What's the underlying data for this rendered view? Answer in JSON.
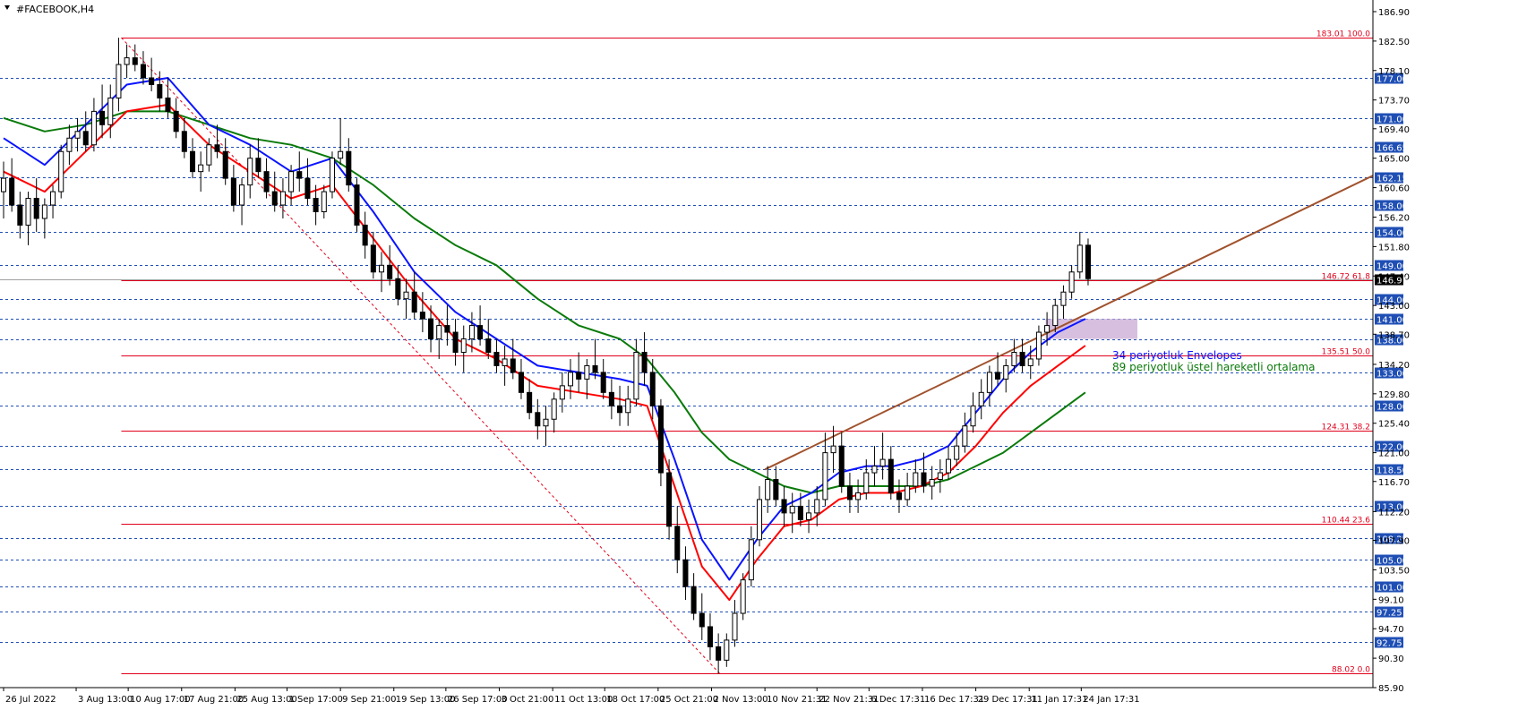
{
  "window": {
    "title": "#FACEBOOK,H4"
  },
  "colors": {
    "background": "#ffffff",
    "grid": "#1f4fb5",
    "fib": "#e0001b",
    "envelope_upper": "#0a14ff",
    "envelope_lower": "#ff0000",
    "ema": "#0a7a0a",
    "trendline": "#a0522d",
    "zone": "#c9a9d4",
    "badge": "#1f4fb5",
    "current_price_badge": "#000000",
    "candle": "#000000"
  },
  "chart_data": {
    "type": "candlestick",
    "symbol": "#FACEBOOK",
    "timeframe": "H4",
    "ylim": [
      85.9,
      187.3
    ],
    "xlim": [
      0,
      100
    ],
    "y_ticks": [
      "186.90",
      "182.50",
      "178.10",
      "173.70",
      "169.40",
      "165.00",
      "160.60",
      "156.20",
      "151.80",
      "147.40",
      "143.00",
      "138.70",
      "134.20",
      "129.80",
      "125.40",
      "121.00",
      "116.70",
      "112.20",
      "107.90",
      "103.50",
      "99.10",
      "94.70",
      "90.30",
      "85.90"
    ],
    "x_ticks": [
      {
        "x": 0,
        "label": "26 Jul 2022"
      },
      {
        "x": 5.3,
        "label": "3 Aug 13:00"
      },
      {
        "x": 9.1,
        "label": "10 Aug 17:00"
      },
      {
        "x": 13.0,
        "label": "17 Aug 21:00"
      },
      {
        "x": 16.9,
        "label": "25 Aug 13:00"
      },
      {
        "x": 20.7,
        "label": "1 Sep 17:00"
      },
      {
        "x": 24.6,
        "label": "9 Sep 21:00"
      },
      {
        "x": 28.5,
        "label": "19 Sep 13:00"
      },
      {
        "x": 32.3,
        "label": "26 Sep 17:00"
      },
      {
        "x": 36.2,
        "label": "3 Oct 21:00"
      },
      {
        "x": 40.1,
        "label": "11 Oct 13:00"
      },
      {
        "x": 43.9,
        "label": "18 Oct 17:00"
      },
      {
        "x": 47.8,
        "label": "25 Oct 21:00"
      },
      {
        "x": 51.7,
        "label": "2 Nov 13:00"
      },
      {
        "x": 55.6,
        "label": "10 Nov 21:31"
      },
      {
        "x": 59.4,
        "label": "22 Nov 21:31"
      },
      {
        "x": 63.2,
        "label": "6 Dec 17:31"
      },
      {
        "x": 67.1,
        "label": "16 Dec 17:31"
      },
      {
        "x": 71.0,
        "label": "29 Dec 17:31"
      },
      {
        "x": 74.9,
        "label": "11 Jan 17:31"
      },
      {
        "x": 78.7,
        "label": "24 Jan 17:31"
      }
    ],
    "horizontal_levels": [
      177.0,
      171.0,
      166.65,
      162.15,
      158.0,
      154.0,
      149.0,
      144.0,
      141.0,
      138.0,
      133.0,
      128.0,
      122.0,
      118.5,
      113.0,
      108.25,
      105.0,
      101.0,
      97.25,
      92.75
    ],
    "fibonacci": [
      {
        "price": 183.01,
        "label": "183.01 100.0"
      },
      {
        "price": 146.72,
        "label": "146.72 61.8"
      },
      {
        "price": 135.51,
        "label": "135.51 50.0"
      },
      {
        "price": 124.31,
        "label": "124.31 38.2"
      },
      {
        "price": 110.44,
        "label": "110.44 23.6"
      },
      {
        "price": 88.02,
        "label": "88.02 0.0"
      }
    ],
    "current_price": "146.91",
    "trendline": [
      [
        55.6,
        118.5
      ],
      [
        100,
        162.4
      ]
    ],
    "fib_diagonal": [
      [
        8.6,
        183.0
      ],
      [
        52.3,
        88.0
      ]
    ],
    "zone": {
      "x": [
        76.1,
        82.8
      ],
      "y": [
        138.0,
        141.0
      ]
    },
    "candles": [
      [
        0,
        160,
        164.5,
        156,
        162
      ],
      [
        0.6,
        162,
        165,
        157,
        158
      ],
      [
        1.2,
        158,
        160,
        153,
        155
      ],
      [
        1.8,
        155,
        160,
        152,
        159
      ],
      [
        2.4,
        159,
        162,
        154,
        156
      ],
      [
        3,
        156,
        159,
        153,
        158
      ],
      [
        3.6,
        158,
        161,
        156,
        160
      ],
      [
        4.2,
        160,
        167,
        159,
        166
      ],
      [
        4.8,
        166,
        170,
        164,
        168
      ],
      [
        5.4,
        168,
        171,
        166,
        169
      ],
      [
        6,
        169,
        172,
        166,
        167
      ],
      [
        6.6,
        167,
        174,
        166,
        172
      ],
      [
        7.2,
        172,
        176,
        168,
        170
      ],
      [
        7.8,
        170,
        176,
        168,
        174
      ],
      [
        8.4,
        174,
        183,
        172,
        179
      ],
      [
        9,
        179,
        182,
        177,
        180
      ],
      [
        9.6,
        180,
        182,
        178,
        179
      ],
      [
        10.2,
        179,
        181,
        176,
        177
      ],
      [
        10.8,
        177,
        180,
        175,
        176
      ],
      [
        11.4,
        176,
        178,
        172,
        174
      ],
      [
        12,
        174,
        177,
        171,
        172
      ],
      [
        12.6,
        172,
        174,
        168,
        169
      ],
      [
        13.2,
        169,
        171,
        165,
        166
      ],
      [
        13.8,
        166,
        168,
        162,
        163
      ],
      [
        14.4,
        163,
        166,
        160,
        164
      ],
      [
        15,
        164,
        168,
        163,
        167
      ],
      [
        15.6,
        167,
        170,
        165,
        166
      ],
      [
        16.2,
        166,
        168,
        161,
        162
      ],
      [
        16.8,
        162,
        164,
        157,
        158
      ],
      [
        17.4,
        158,
        162,
        155,
        161
      ],
      [
        18,
        161,
        167,
        159,
        165
      ],
      [
        18.6,
        165,
        168,
        162,
        163
      ],
      [
        19.2,
        163,
        165,
        159,
        160
      ],
      [
        19.8,
        160,
        163,
        157,
        158
      ],
      [
        20.4,
        158,
        162,
        156,
        160
      ],
      [
        21,
        160,
        164,
        158,
        163
      ],
      [
        21.6,
        163,
        166,
        160,
        162
      ],
      [
        22.2,
        162,
        165,
        158,
        159
      ],
      [
        22.8,
        159,
        161,
        155,
        157
      ],
      [
        23.4,
        157,
        161,
        156,
        160
      ],
      [
        24,
        160,
        166,
        159,
        165
      ],
      [
        24.6,
        165,
        171,
        164,
        166
      ],
      [
        25.2,
        166,
        168,
        160,
        161
      ],
      [
        25.8,
        161,
        162,
        154,
        155
      ],
      [
        26.4,
        155,
        157,
        150,
        152
      ],
      [
        27,
        152,
        154,
        147,
        148
      ],
      [
        27.6,
        148,
        151,
        145,
        149
      ],
      [
        28.2,
        149,
        152,
        146,
        147
      ],
      [
        28.8,
        147,
        149,
        143,
        144
      ],
      [
        29.4,
        144,
        147,
        141,
        145
      ],
      [
        30,
        145,
        148,
        141,
        142
      ],
      [
        30.6,
        142,
        145,
        139,
        141
      ],
      [
        31.2,
        141,
        143,
        136,
        138
      ],
      [
        31.8,
        138,
        141,
        135,
        140
      ],
      [
        32.4,
        140,
        143,
        137,
        139
      ],
      [
        33,
        139,
        141,
        134,
        136
      ],
      [
        33.6,
        136,
        140,
        133,
        138
      ],
      [
        34.2,
        138,
        142,
        136,
        140
      ],
      [
        34.8,
        140,
        143,
        137,
        138
      ],
      [
        35.4,
        138,
        141,
        135,
        136
      ],
      [
        36,
        136,
        138,
        133,
        134
      ],
      [
        36.6,
        134,
        137,
        131,
        135
      ],
      [
        37.2,
        135,
        138,
        132,
        133
      ],
      [
        37.8,
        133,
        135,
        129,
        130
      ],
      [
        38.4,
        130,
        132,
        126,
        127
      ],
      [
        39,
        127,
        129,
        123,
        125
      ],
      [
        39.6,
        125,
        128,
        122,
        126
      ],
      [
        40.2,
        126,
        130,
        124,
        129
      ],
      [
        40.8,
        129,
        133,
        127,
        131
      ],
      [
        41.4,
        131,
        135,
        129,
        133
      ],
      [
        42,
        133,
        136,
        130,
        132
      ],
      [
        42.6,
        132,
        135,
        129,
        134
      ],
      [
        43.2,
        134,
        138,
        132,
        133
      ],
      [
        43.8,
        133,
        135,
        129,
        130
      ],
      [
        44.4,
        130,
        132,
        126,
        128
      ],
      [
        45,
        128,
        131,
        125,
        127
      ],
      [
        45.6,
        127,
        131,
        125,
        129
      ],
      [
        46.2,
        129,
        138,
        128,
        136
      ],
      [
        46.8,
        136,
        139,
        131,
        133
      ],
      [
        47.4,
        133,
        135,
        126,
        128
      ],
      [
        48,
        128,
        129,
        116,
        118
      ],
      [
        48.6,
        118,
        120,
        108,
        110
      ],
      [
        49.2,
        110,
        113,
        103,
        105
      ],
      [
        49.8,
        105,
        107,
        99,
        101
      ],
      [
        50.4,
        101,
        103,
        96,
        97
      ],
      [
        51,
        97,
        100,
        93,
        95
      ],
      [
        51.6,
        95,
        97,
        90,
        92
      ],
      [
        52.2,
        92,
        94,
        88,
        90
      ],
      [
        52.8,
        90,
        94,
        89,
        93
      ],
      [
        53.4,
        93,
        99,
        92,
        97
      ],
      [
        54,
        97,
        103,
        96,
        102
      ],
      [
        54.6,
        102,
        110,
        101,
        108
      ],
      [
        55.2,
        108,
        116,
        107,
        114
      ],
      [
        55.8,
        114,
        119,
        112,
        117
      ],
      [
        56.4,
        117,
        119,
        113,
        114
      ],
      [
        57,
        114,
        116,
        110,
        112
      ],
      [
        57.6,
        112,
        115,
        109,
        113
      ],
      [
        58.2,
        113,
        115,
        110,
        111
      ],
      [
        58.8,
        111,
        114,
        109,
        112
      ],
      [
        59.4,
        112,
        116,
        110,
        114
      ],
      [
        60,
        114,
        124,
        113,
        121
      ],
      [
        60.6,
        121,
        125,
        118,
        122
      ],
      [
        61.2,
        122,
        124,
        115,
        116
      ],
      [
        61.8,
        116,
        118,
        112,
        114
      ],
      [
        62.4,
        114,
        117,
        112,
        115
      ],
      [
        63,
        115,
        120,
        114,
        118
      ],
      [
        63.6,
        118,
        122,
        116,
        119
      ],
      [
        64.2,
        119,
        124,
        117,
        120
      ],
      [
        64.8,
        120,
        122,
        114,
        115
      ],
      [
        65.4,
        115,
        117,
        112,
        114
      ],
      [
        66,
        114,
        118,
        113,
        116
      ],
      [
        66.6,
        116,
        120,
        115,
        118
      ],
      [
        67.2,
        118,
        121,
        115,
        116
      ],
      [
        67.8,
        116,
        119,
        114,
        117
      ],
      [
        68.4,
        117,
        120,
        115,
        118
      ],
      [
        69,
        118,
        122,
        117,
        120
      ],
      [
        69.6,
        120,
        124,
        119,
        122
      ],
      [
        70.2,
        122,
        127,
        121,
        125
      ],
      [
        70.8,
        125,
        130,
        124,
        128
      ],
      [
        71.4,
        128,
        132,
        126,
        130
      ],
      [
        72,
        130,
        134,
        128,
        133
      ],
      [
        72.6,
        133,
        136,
        131,
        132
      ],
      [
        73.2,
        132,
        135,
        130,
        134
      ],
      [
        73.8,
        134,
        138,
        133,
        136
      ],
      [
        74.4,
        136,
        138,
        133,
        134
      ],
      [
        75,
        134,
        137,
        132,
        135
      ],
      [
        75.6,
        135,
        140,
        134,
        139
      ],
      [
        76.2,
        139,
        142,
        137,
        140
      ],
      [
        76.8,
        140,
        144,
        139,
        143
      ],
      [
        77.4,
        143,
        146,
        141,
        145
      ],
      [
        78,
        145,
        149,
        144,
        148
      ],
      [
        78.6,
        148,
        154,
        147,
        152
      ],
      [
        79.2,
        152,
        153,
        146,
        147
      ]
    ],
    "envelope_upper": [
      [
        0,
        168
      ],
      [
        3,
        164
      ],
      [
        6,
        170
      ],
      [
        9,
        176
      ],
      [
        12,
        177
      ],
      [
        15,
        170
      ],
      [
        18,
        167
      ],
      [
        21,
        163
      ],
      [
        24,
        165
      ],
      [
        27,
        157
      ],
      [
        30,
        148
      ],
      [
        33,
        142
      ],
      [
        36,
        138
      ],
      [
        39,
        134
      ],
      [
        42,
        133
      ],
      [
        45,
        132
      ],
      [
        47,
        131
      ],
      [
        49,
        120
      ],
      [
        51,
        108
      ],
      [
        53,
        102
      ],
      [
        55,
        108
      ],
      [
        57,
        113
      ],
      [
        59,
        115
      ],
      [
        61,
        118
      ],
      [
        63,
        119
      ],
      [
        65,
        119
      ],
      [
        67,
        120
      ],
      [
        69,
        122
      ],
      [
        71,
        127
      ],
      [
        73,
        132
      ],
      [
        75,
        136
      ],
      [
        77,
        139
      ],
      [
        79,
        141
      ]
    ],
    "envelope_lower": [
      [
        0,
        163
      ],
      [
        3,
        160
      ],
      [
        6,
        166
      ],
      [
        9,
        172
      ],
      [
        12,
        173
      ],
      [
        15,
        167
      ],
      [
        18,
        163
      ],
      [
        21,
        159
      ],
      [
        24,
        161
      ],
      [
        27,
        153
      ],
      [
        30,
        145
      ],
      [
        33,
        138
      ],
      [
        36,
        135
      ],
      [
        39,
        131
      ],
      [
        42,
        130
      ],
      [
        45,
        129
      ],
      [
        47,
        128
      ],
      [
        49,
        116
      ],
      [
        51,
        104
      ],
      [
        53,
        99
      ],
      [
        55,
        105
      ],
      [
        57,
        110
      ],
      [
        59,
        111
      ],
      [
        61,
        114
      ],
      [
        63,
        115
      ],
      [
        65,
        115
      ],
      [
        67,
        116
      ],
      [
        69,
        118
      ],
      [
        71,
        122
      ],
      [
        73,
        127
      ],
      [
        75,
        131
      ],
      [
        77,
        134
      ],
      [
        79,
        137
      ]
    ],
    "ema89": [
      [
        0,
        171
      ],
      [
        3,
        169
      ],
      [
        6,
        170
      ],
      [
        9,
        172
      ],
      [
        12,
        172
      ],
      [
        15,
        170
      ],
      [
        18,
        168
      ],
      [
        21,
        167
      ],
      [
        24,
        165
      ],
      [
        27,
        161
      ],
      [
        30,
        156
      ],
      [
        33,
        152
      ],
      [
        36,
        149
      ],
      [
        39,
        144
      ],
      [
        42,
        140
      ],
      [
        45,
        138
      ],
      [
        47,
        135
      ],
      [
        49,
        130
      ],
      [
        51,
        124
      ],
      [
        53,
        120
      ],
      [
        55,
        118
      ],
      [
        57,
        116
      ],
      [
        59,
        115
      ],
      [
        61,
        116
      ],
      [
        63,
        116
      ],
      [
        65,
        116
      ],
      [
        67,
        116
      ],
      [
        69,
        117
      ],
      [
        71,
        119
      ],
      [
        73,
        121
      ],
      [
        75,
        124
      ],
      [
        77,
        127
      ],
      [
        79,
        130
      ]
    ],
    "annotations": [
      {
        "text": "34 periyotluk Envelopes",
        "color": "#0a14ff"
      },
      {
        "text": "89 periyotluk üstel hareketli ortalama",
        "color": "#0a7a0a"
      }
    ]
  }
}
